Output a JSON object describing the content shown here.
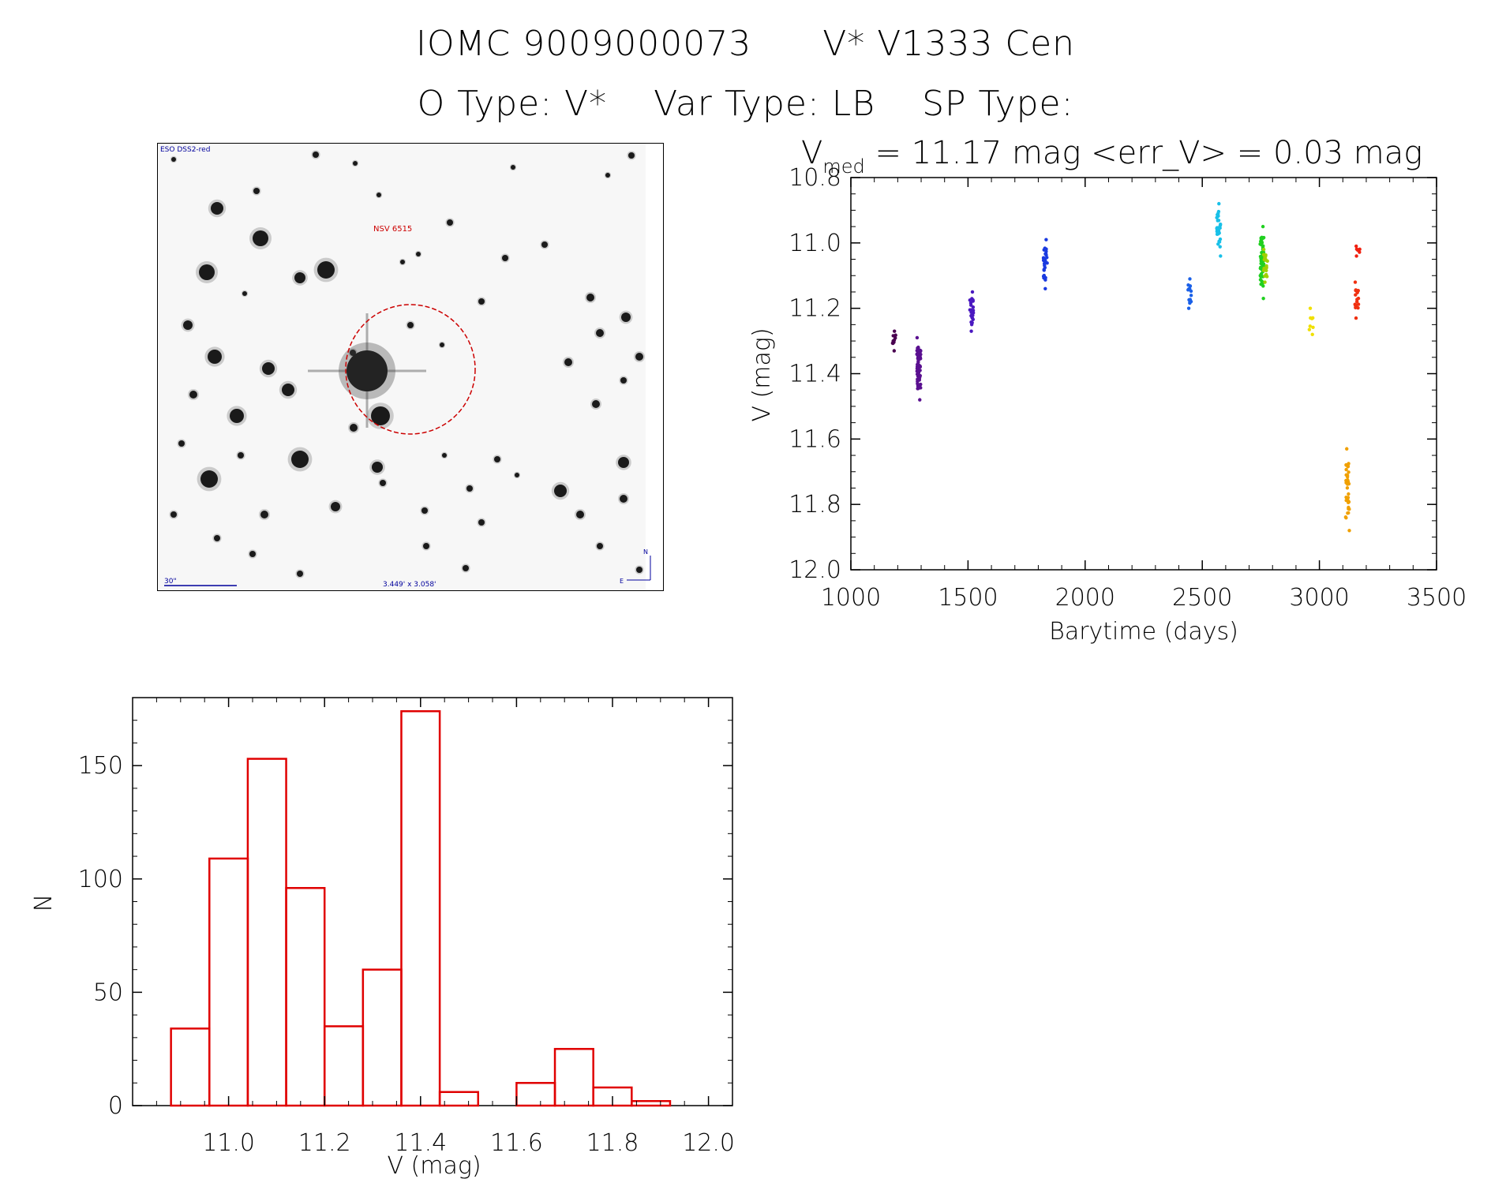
{
  "header": {
    "catalog_id": "IOMC 9009000073",
    "star_name": "V* V1333 Cen",
    "o_type": "O Type: V*",
    "var_type": "Var Type: LB",
    "sp_type": "SP Type:"
  },
  "sky_image": {
    "survey_label": "ESO DSS2-red",
    "object_label": "NSV 6515",
    "scale_label": "30\"",
    "fov_label": "3.449' x 3.058'",
    "north_label": "N",
    "east_label": "E"
  },
  "colors": {
    "histogram": "#e00000",
    "marker_circle": "#cc0000",
    "image_text": "#00009c"
  },
  "chart_data": [
    {
      "type": "scatter",
      "title_parts": {
        "v": "V",
        "sub": "med",
        "rest": " = 11.17 mag <err_V> = 0.03 mag"
      },
      "xlabel": "Barytime (days)",
      "ylabel": "V (mag)",
      "xlim": [
        1000,
        3500
      ],
      "ylim": [
        12.0,
        10.8
      ],
      "y_inverted": true,
      "xticks": [
        1000,
        1500,
        2000,
        2500,
        3000,
        3500
      ],
      "yticks": [
        10.8,
        11.0,
        11.2,
        11.4,
        11.6,
        11.8,
        12.0
      ],
      "groups": [
        {
          "x": 1185,
          "ymin": 11.27,
          "ymax": 11.33,
          "n": 10,
          "color": "#4a0050"
        },
        {
          "x": 1290,
          "ymin": 11.29,
          "ymax": 11.48,
          "n": 60,
          "color": "#5a1090"
        },
        {
          "x": 1515,
          "ymin": 11.15,
          "ymax": 11.27,
          "n": 25,
          "color": "#4a18c0"
        },
        {
          "x": 1830,
          "ymin": 10.99,
          "ymax": 11.14,
          "n": 30,
          "color": "#1a3ae0"
        },
        {
          "x": 2445,
          "ymin": 11.11,
          "ymax": 11.2,
          "n": 15,
          "color": "#1a60e8"
        },
        {
          "x": 2570,
          "ymin": 10.88,
          "ymax": 11.04,
          "n": 30,
          "color": "#18c0e8"
        },
        {
          "x": 2755,
          "ymin": 10.95,
          "ymax": 11.17,
          "n": 60,
          "color": "#20d020"
        },
        {
          "x": 2770,
          "ymin": 11.02,
          "ymax": 11.12,
          "n": 20,
          "color": "#a0d000"
        },
        {
          "x": 2965,
          "ymin": 11.2,
          "ymax": 11.28,
          "n": 8,
          "color": "#f0e000"
        },
        {
          "x": 3120,
          "ymin": 11.63,
          "ymax": 11.88,
          "n": 35,
          "color": "#f0a000"
        },
        {
          "x": 3160,
          "ymin": 11.12,
          "ymax": 11.23,
          "n": 20,
          "color": "#f03010"
        },
        {
          "x": 3165,
          "ymin": 11.01,
          "ymax": 11.04,
          "n": 6,
          "color": "#f02010"
        }
      ]
    },
    {
      "type": "bar",
      "xlabel": "V (mag)",
      "ylabel": "N",
      "xlim": [
        10.8,
        12.05
      ],
      "ylim": [
        0,
        180
      ],
      "xticks": [
        11.0,
        11.2,
        11.4,
        11.6,
        11.8,
        12.0
      ],
      "yticks": [
        0,
        50,
        100,
        150
      ],
      "bin_width": 0.08,
      "bin_start": 10.88,
      "values": [
        34,
        109,
        153,
        96,
        35,
        60,
        174,
        6,
        0,
        10,
        25,
        8,
        2
      ]
    }
  ]
}
